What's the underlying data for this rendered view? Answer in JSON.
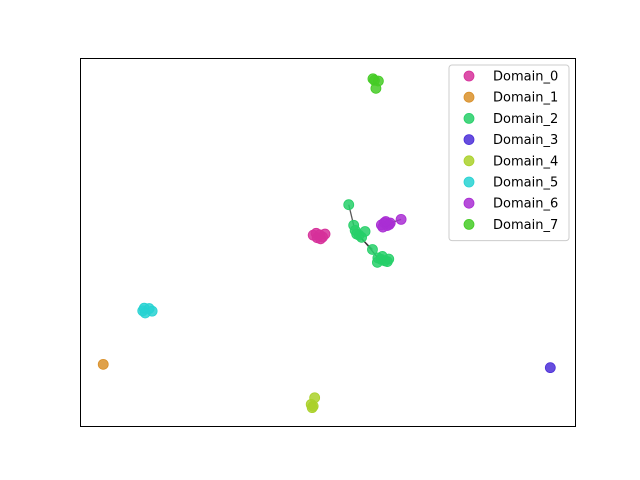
{
  "chart_data": {
    "type": "scatter",
    "title": "",
    "xlabel": "",
    "ylabel": "",
    "xlim": [
      0,
      100
    ],
    "ylim": [
      0,
      100
    ],
    "grid": false,
    "axis_ticks": false,
    "legend_position": "upper right",
    "series": [
      {
        "name": "Domain_0",
        "color": "#d6309a",
        "points": [
          [
            47.0,
            52.0
          ],
          [
            47.8,
            51.3
          ],
          [
            48.3,
            52.1
          ],
          [
            48.9,
            51.5
          ],
          [
            49.4,
            52.3
          ],
          [
            48.5,
            51.0
          ],
          [
            47.6,
            52.5
          ]
        ]
      },
      {
        "name": "Domain_1",
        "color": "#d9902a",
        "points": [
          [
            4.5,
            16.8
          ]
        ]
      },
      {
        "name": "Domain_2",
        "color": "#26cf68",
        "points": [
          [
            54.2,
            60.3
          ],
          [
            55.2,
            54.7
          ],
          [
            55.8,
            52.3
          ],
          [
            56.3,
            52.0
          ],
          [
            56.8,
            51.4
          ],
          [
            57.5,
            53.0
          ],
          [
            55.5,
            53.3
          ],
          [
            59.0,
            48.1
          ],
          [
            60.1,
            45.8
          ],
          [
            60.8,
            45.4
          ],
          [
            61.5,
            45.0
          ],
          [
            62.3,
            45.5
          ],
          [
            61.0,
            46.2
          ],
          [
            60.0,
            44.6
          ],
          [
            62.0,
            44.8
          ]
        ]
      },
      {
        "name": "Domain_3",
        "color": "#4b2ed8",
        "points": [
          [
            95.0,
            15.9
          ]
        ]
      },
      {
        "name": "Domain_4",
        "color": "#aad12a",
        "points": [
          [
            47.0,
            5.4
          ],
          [
            46.6,
            5.9
          ],
          [
            47.3,
            7.7
          ],
          [
            46.8,
            5.0
          ]
        ]
      },
      {
        "name": "Domain_5",
        "color": "#27d2d2",
        "points": [
          [
            12.5,
            31.4
          ],
          [
            13.0,
            30.8
          ],
          [
            13.8,
            32.0
          ],
          [
            14.4,
            31.3
          ],
          [
            12.8,
            32.1
          ]
        ]
      },
      {
        "name": "Domain_6",
        "color": "#a92ed3",
        "points": [
          [
            64.8,
            56.3
          ],
          [
            60.8,
            54.8
          ],
          [
            61.4,
            55.4
          ],
          [
            62.0,
            54.6
          ],
          [
            62.6,
            55.3
          ],
          [
            61.1,
            54.2
          ],
          [
            62.4,
            54.9
          ],
          [
            61.7,
            55.7
          ]
        ]
      },
      {
        "name": "Domain_7",
        "color": "#45cb26",
        "points": [
          [
            59.4,
            94.2
          ],
          [
            60.2,
            94.0
          ],
          [
            59.7,
            92.0
          ],
          [
            59.1,
            94.6
          ]
        ]
      }
    ],
    "edges": [
      {
        "from": [
          54.2,
          60.3
        ],
        "to": [
          55.2,
          54.7
        ]
      },
      {
        "from": [
          55.8,
          52.3
        ],
        "to": [
          59.0,
          48.1
        ]
      },
      {
        "from": [
          56.3,
          52.0
        ],
        "to": [
          60.1,
          45.8
        ]
      },
      {
        "from": [
          62.6,
          55.3
        ],
        "to": [
          64.8,
          56.3
        ]
      }
    ]
  }
}
